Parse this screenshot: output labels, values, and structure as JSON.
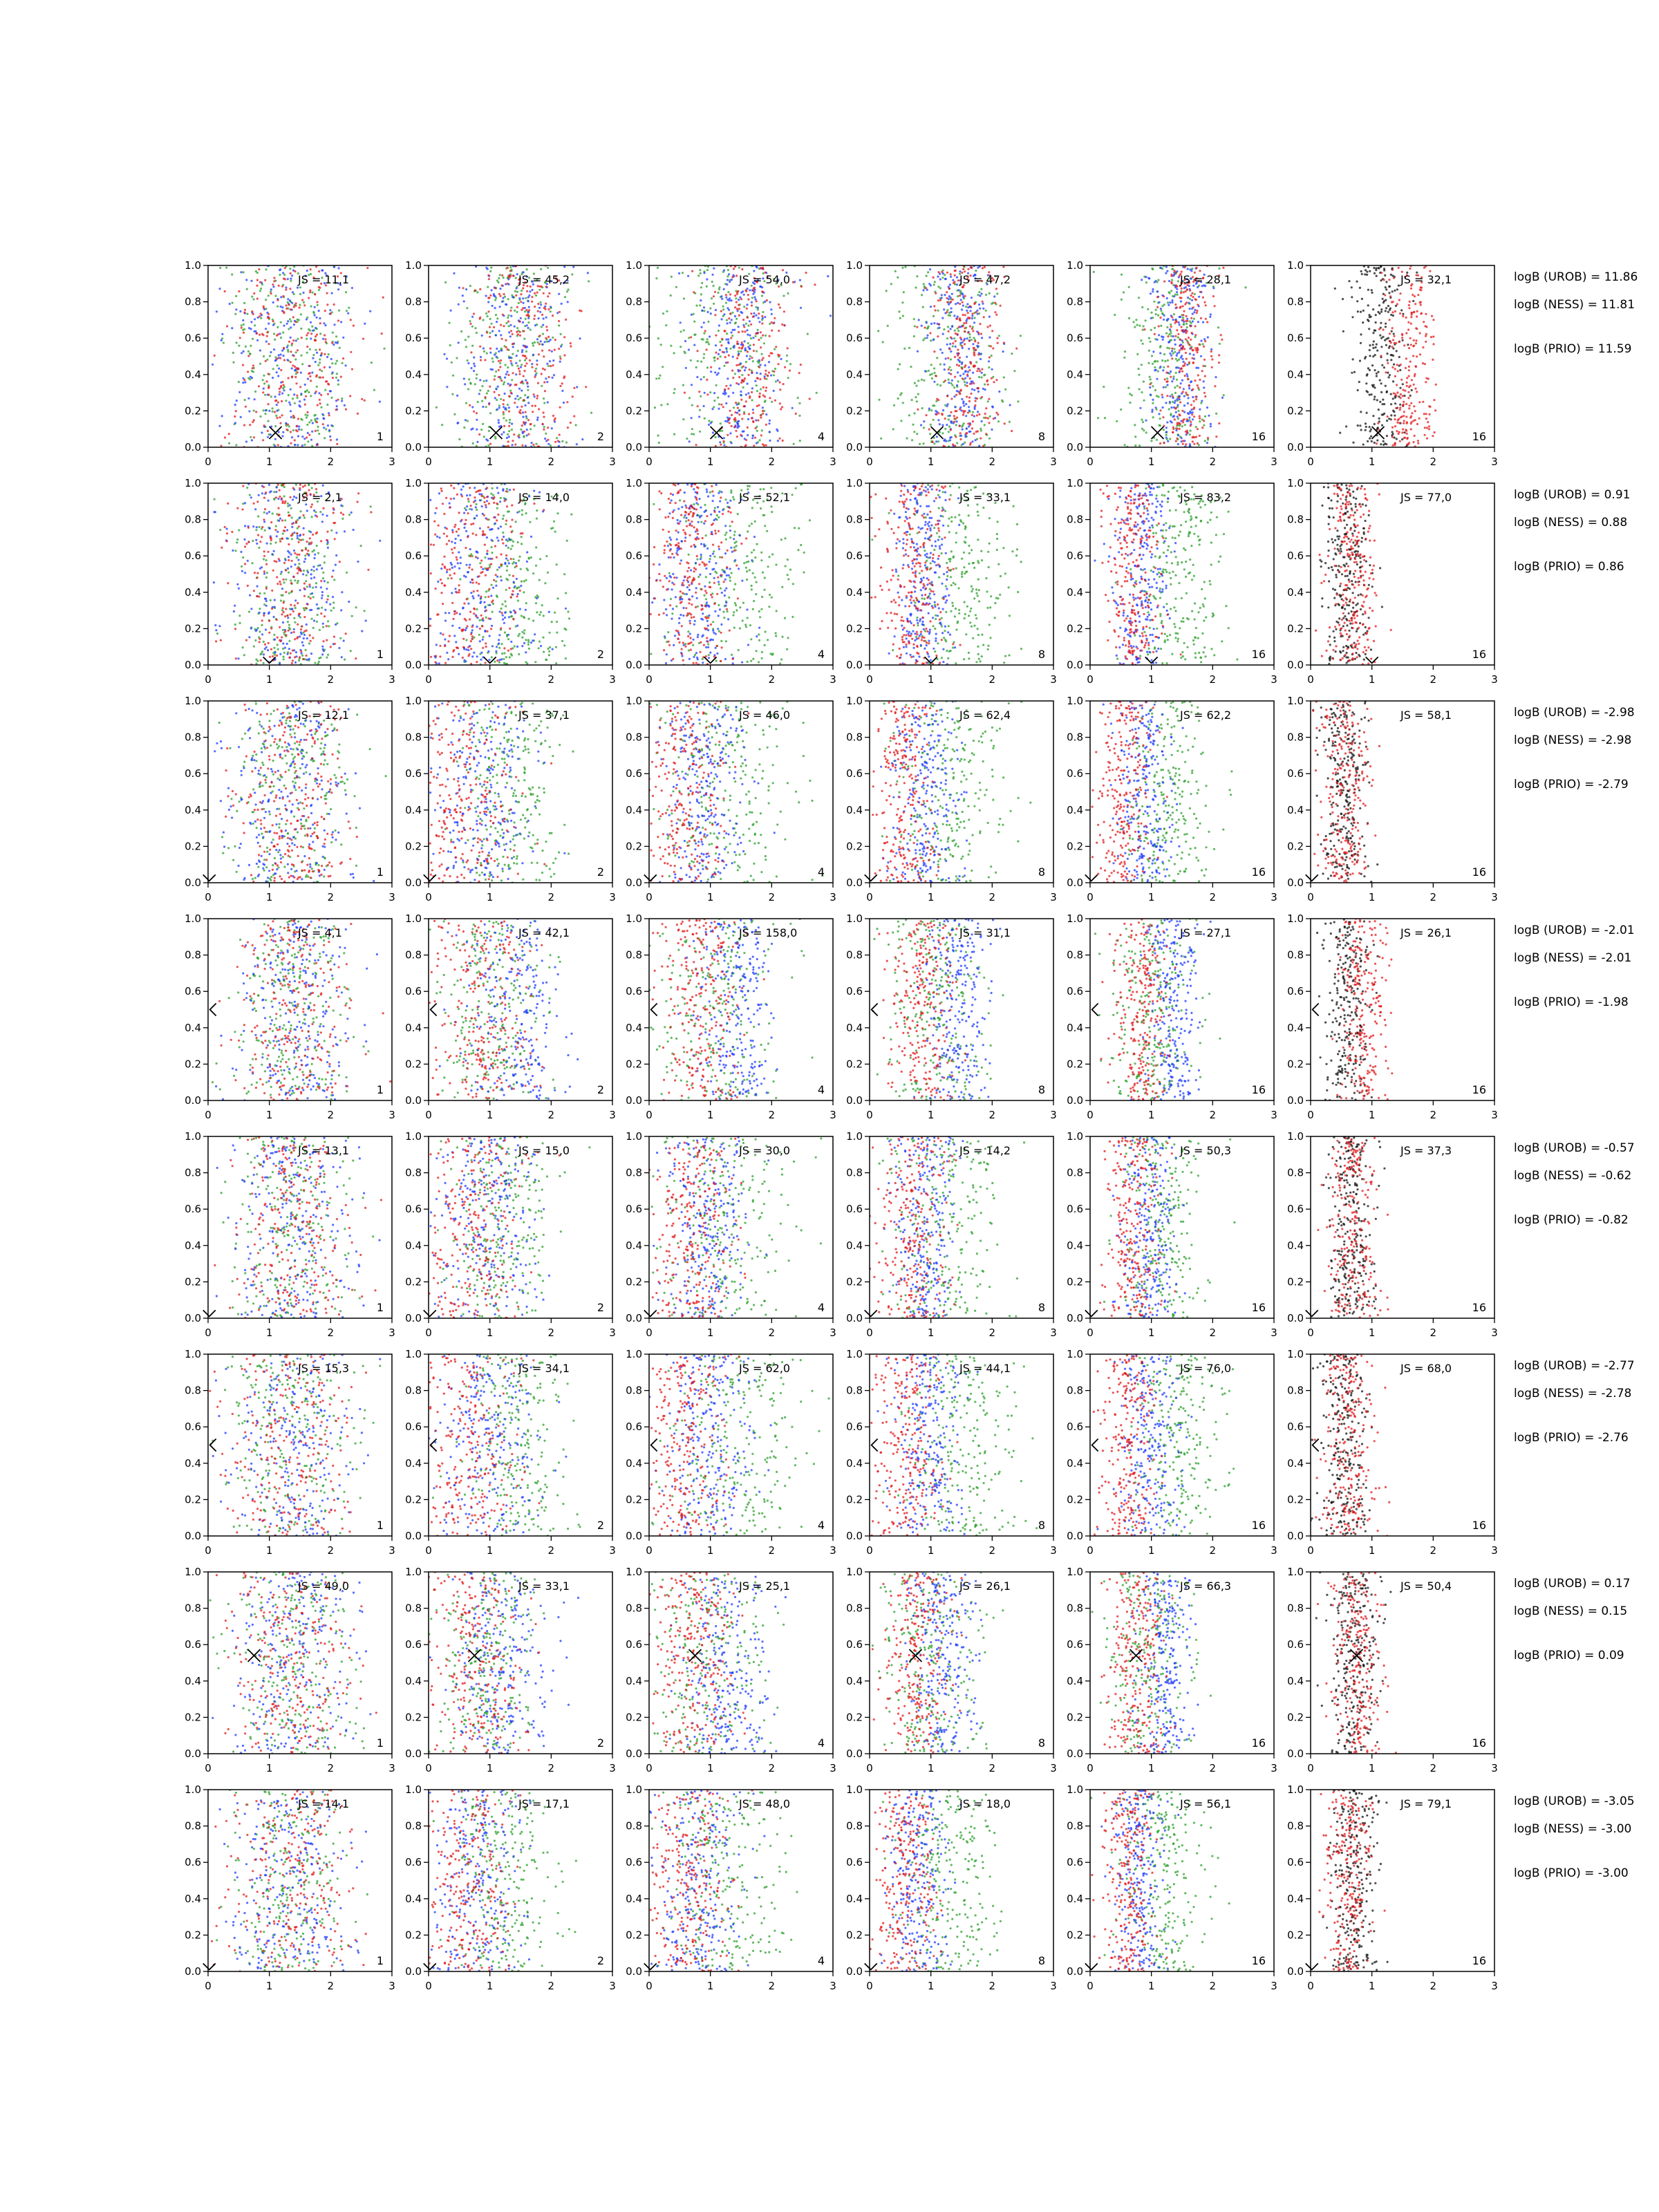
{
  "chart_data": {
    "type": "scatter",
    "description_layout": "8 rows x 6 columns grid of scatter panels",
    "xlim": [
      0,
      3
    ],
    "ylim": [
      0,
      1
    ],
    "xticks": [
      "0",
      "1",
      "2",
      "3"
    ],
    "yticks": [
      "0.0",
      "0.2",
      "0.4",
      "0.6",
      "0.8",
      "1.0"
    ],
    "series_colors": {
      "green": "#2ca02c",
      "blue": "#1f3cff",
      "red": "#e31a1c",
      "black": "#111111"
    },
    "column_labels": [
      "1",
      "2",
      "4",
      "8",
      "16",
      "16"
    ],
    "rows": [
      {
        "js": [
          "JS = 11,1",
          "JS = 45,2",
          "JS = 54,0",
          "JS = 47,2",
          "JS = 28,1",
          "JS = 32,1"
        ],
        "logb": [
          "logB (UROB) = 11.86",
          "logB (NESS) = 11.81",
          "logB (PRIO) = 11.59"
        ],
        "marker": {
          "symbol": "x",
          "x": 1.1,
          "y": 0.08
        },
        "centers": {
          "green": 1.25,
          "blue": 1.45,
          "red": 1.6,
          "black": 1.15
        },
        "spread": 0.55
      },
      {
        "js": [
          "JS = 2,1",
          "JS = 14,0",
          "JS = 52,1",
          "JS = 33,1",
          "JS = 83,2",
          "JS = 77,0"
        ],
        "logb": [
          "logB (UROB) = 0.91",
          "logB (NESS) = 0.88",
          "logB (PRIO) = 0.86"
        ],
        "marker": {
          "symbol": "v",
          "x": 1.0,
          "y": 0.01
        },
        "centers": {
          "green": 1.45,
          "blue": 0.85,
          "red": 0.7,
          "black": 0.6
        },
        "spread": 0.5
      },
      {
        "js": [
          "JS = 12,1",
          "JS = 37,1",
          "JS = 46,0",
          "JS = 62,4",
          "JS = 62,2",
          "JS = 58,1"
        ],
        "logb": [
          "logB (UROB) = -2.98",
          "logB (NESS) = -2.98",
          "logB (PRIO) = -2.79"
        ],
        "marker": {
          "symbol": "v",
          "x": 0.02,
          "y": 0.01
        },
        "centers": {
          "green": 1.3,
          "blue": 0.9,
          "red": 0.55,
          "black": 0.55
        },
        "spread": 0.5
      },
      {
        "js": [
          "JS = 4,1",
          "JS = 42,1",
          "JS = 158,0",
          "JS = 31,1",
          "JS = 27,1",
          "JS = 26,1"
        ],
        "logb": [
          "logB (UROB) = -2.01",
          "logB (NESS) = -2.01",
          "logB (PRIO) = -1.98"
        ],
        "marker": {
          "symbol": "<",
          "x": 0.03,
          "y": 0.5
        },
        "centers": {
          "green": 1.05,
          "blue": 1.4,
          "red": 0.85,
          "black": 0.6
        },
        "spread": 0.48
      },
      {
        "js": [
          "JS = 13,1",
          "JS = 15,0",
          "JS = 30,0",
          "JS = 14,2",
          "JS = 50,3",
          "JS = 37,3"
        ],
        "logb": [
          "logB (UROB) = -0.57",
          "logB (NESS) = -0.62",
          "logB (PRIO) = -0.82"
        ],
        "marker": {
          "symbol": "v",
          "x": 0.02,
          "y": 0.01
        },
        "centers": {
          "green": 1.2,
          "blue": 0.95,
          "red": 0.7,
          "black": 0.65
        },
        "spread": 0.5
      },
      {
        "js": [
          "JS = 15,3",
          "JS = 34,1",
          "JS = 62,0",
          "JS = 44,1",
          "JS = 76,0",
          "JS = 68,0"
        ],
        "logb": [
          "logB (UROB) = -2.77",
          "logB (NESS) = -2.78",
          "logB (PRIO) = -2.76"
        ],
        "marker": {
          "symbol": "<",
          "x": 0.03,
          "y": 0.5
        },
        "centers": {
          "green": 1.45,
          "blue": 0.95,
          "red": 0.6,
          "black": 0.55
        },
        "spread": 0.52
      },
      {
        "js": [
          "JS = 49,0",
          "JS = 33,1",
          "JS = 25,1",
          "JS = 26,1",
          "JS = 66,3",
          "JS = 50,4"
        ],
        "logb": [
          "logB (UROB) = 0.17",
          "logB (NESS) = 0.15",
          "logB (PRIO) = 0.09"
        ],
        "marker": {
          "symbol": "x",
          "x": 0.75,
          "y": 0.54
        },
        "centers": {
          "green": 0.95,
          "blue": 1.2,
          "red": 0.75,
          "black": 0.7
        },
        "spread": 0.5
      },
      {
        "js": [
          "JS = 14,1",
          "JS = 17,1",
          "JS = 48,0",
          "JS = 18,0",
          "JS = 56,1",
          "JS = 79,1"
        ],
        "logb": [
          "logB (UROB) = -3.05",
          "logB (NESS) = -3.00",
          "logB (PRIO) = -3.00"
        ],
        "marker": {
          "symbol": "v",
          "x": 0.02,
          "y": 0.01
        },
        "centers": {
          "green": 1.2,
          "blue": 0.8,
          "red": 0.6,
          "black": 0.7
        },
        "spread": 0.48
      }
    ]
  }
}
